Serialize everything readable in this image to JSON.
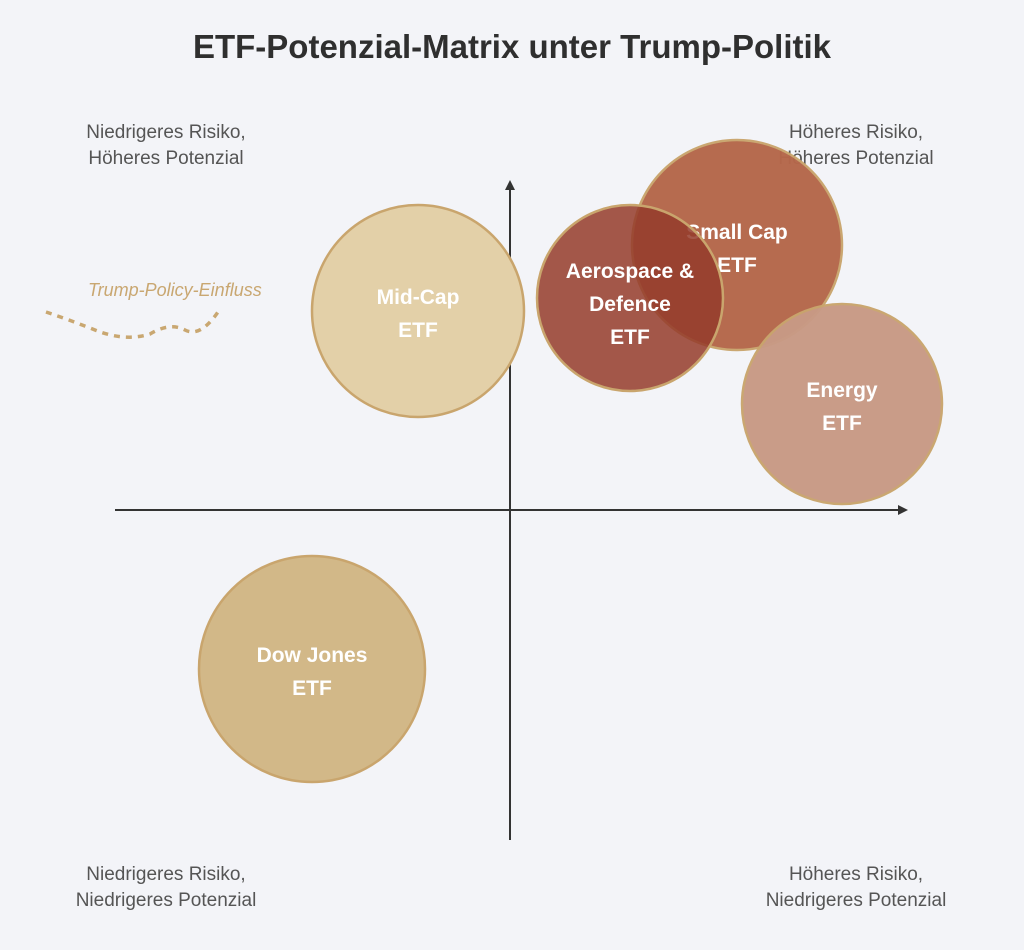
{
  "title": "ETF-Potenzial-Matrix unter Trump-Politik",
  "quadrants": {
    "top_left": [
      "Niedrigeres Risiko,",
      "Höheres Potenzial"
    ],
    "top_right": [
      "Höheres Risiko,",
      "Höheres Potenzial"
    ],
    "bottom_left": [
      "Niedrigeres Risiko,",
      "Niedrigeres Potenzial"
    ],
    "bottom_right": [
      "Höheres Risiko,",
      "Niedrigeres Potenzial"
    ]
  },
  "trend_label": "Trump-Policy-Einfluss",
  "bubbles": {
    "midcap": {
      "lines": [
        "Mid-Cap",
        "ETF"
      ],
      "fill": "#e3d0a8",
      "opacity": 0.95
    },
    "smallcap": {
      "lines": [
        "Small Cap",
        "ETF"
      ],
      "fill": "#b5674a",
      "opacity": 0.97
    },
    "aerospace": {
      "lines": [
        "Aerospace &",
        "Defence",
        "ETF"
      ],
      "fill": "#943b2a",
      "opacity": 0.85
    },
    "energy": {
      "lines": [
        "Energy",
        "ETF"
      ],
      "fill": "#c89a85",
      "opacity": 0.97
    },
    "dowjones": {
      "lines": [
        "Dow Jones",
        "ETF"
      ],
      "fill": "#d2b888",
      "opacity": 1.0
    }
  },
  "colors": {
    "axis": "#333333",
    "bubble_stroke": "#c9a56d",
    "trend": "#c9a771",
    "background": "#f3f4f8"
  }
}
